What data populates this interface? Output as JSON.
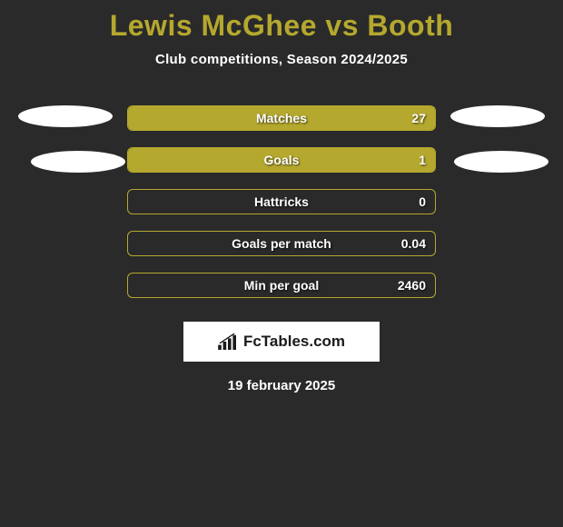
{
  "title": "Lewis McGhee vs Booth",
  "subtitle": "Club competitions, Season 2024/2025",
  "date": "19 february 2025",
  "logo": {
    "text": "FcTables.com"
  },
  "colors": {
    "background": "#2a2a2a",
    "accent": "#b5a82e",
    "text": "#ffffff",
    "ellipse": "#ffffff",
    "logo_bg": "#ffffff",
    "logo_text": "#1a1a1a"
  },
  "stats": [
    {
      "label": "Matches",
      "value": "27",
      "fill_pct": 100
    },
    {
      "label": "Goals",
      "value": "1",
      "fill_pct": 100
    },
    {
      "label": "Hattricks",
      "value": "0",
      "fill_pct": 0
    },
    {
      "label": "Goals per match",
      "value": "0.04",
      "fill_pct": 0
    },
    {
      "label": "Min per goal",
      "value": "2460",
      "fill_pct": 0
    }
  ],
  "left_ellipses": 2,
  "right_ellipses": 2
}
